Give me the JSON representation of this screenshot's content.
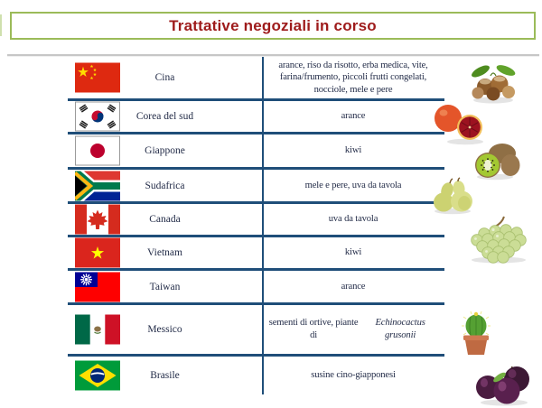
{
  "title": {
    "text": "Trattative negoziali in corso"
  },
  "colors": {
    "title_text": "#9e1b1b",
    "title_border": "#9bbb59",
    "table_line": "#1f4e79",
    "divider": "#c6c6c6",
    "body_text": "#232c48"
  },
  "table": {
    "columns": [
      "flag",
      "country",
      "products"
    ],
    "rows": [
      {
        "country": "Cina",
        "flag_icon": "china-flag",
        "products": [
          {
            "text": "arance, riso da risotto, erba medica, vite, farina/frumento, piccoli frutti congelati, nocciole, mele e pere",
            "italic": false
          }
        ]
      },
      {
        "country": "Corea del sud",
        "flag_icon": "south-korea-flag",
        "products": [
          {
            "text": "arance",
            "italic": false
          }
        ]
      },
      {
        "country": "Giappone",
        "flag_icon": "japan-flag",
        "products": [
          {
            "text": "kiwi",
            "italic": false
          }
        ]
      },
      {
        "country": "Sudafrica",
        "flag_icon": "south-africa-flag",
        "products": [
          {
            "text": "mele e pere, uva da tavola",
            "italic": false
          }
        ]
      },
      {
        "country": "Canada",
        "flag_icon": "canada-flag",
        "products": [
          {
            "text": "uva da tavola",
            "italic": false
          }
        ]
      },
      {
        "country": "Vietnam",
        "flag_icon": "vietnam-flag",
        "products": [
          {
            "text": "kiwi",
            "italic": false
          }
        ]
      },
      {
        "country": "Taiwan",
        "flag_icon": "taiwan-flag",
        "products": [
          {
            "text": "arance",
            "italic": false
          }
        ]
      },
      {
        "country": "Messico",
        "flag_icon": "mexico-flag",
        "products": [
          {
            "text": "sementi di ortive, piante di ",
            "italic": false
          },
          {
            "text": "Echinocactus grusonii",
            "italic": true
          }
        ]
      },
      {
        "country": "Brasile",
        "flag_icon": "brazil-flag",
        "products": [
          {
            "text": "susine cino-giapponesi",
            "italic": false
          }
        ]
      }
    ]
  },
  "illustrations": [
    "hazelnuts-image",
    "blood-oranges-image",
    "kiwi-image",
    "pears-image",
    "grapes-image",
    "cactus-image",
    "plums-image"
  ]
}
